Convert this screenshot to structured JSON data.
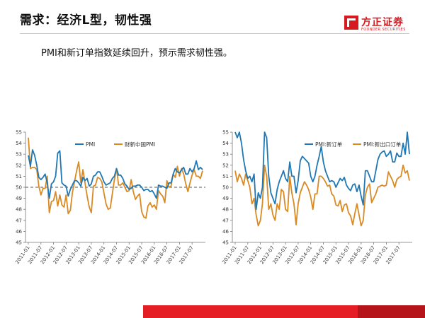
{
  "slide": {
    "title": "需求：经济L型，韧性强",
    "subtitle": "PMI和新订单指数延续回升，预示需求韧性强。",
    "logo_cn": "方正证券",
    "logo_en": "FOUNDER SECURITIES",
    "accent_color": "#d71920"
  },
  "chart_data": [
    {
      "type": "line",
      "x": [
        "2011-01",
        "2011-02",
        "2011-03",
        "2011-04",
        "2011-05",
        "2011-06",
        "2011-07",
        "2011-08",
        "2011-09",
        "2011-10",
        "2011-11",
        "2011-12",
        "2012-01",
        "2012-02",
        "2012-03",
        "2012-04",
        "2012-05",
        "2012-06",
        "2012-07",
        "2012-08",
        "2012-09",
        "2012-10",
        "2012-11",
        "2012-12",
        "2013-01",
        "2013-02",
        "2013-03",
        "2013-04",
        "2013-05",
        "2013-06",
        "2013-07",
        "2013-08",
        "2013-09",
        "2013-10",
        "2013-11",
        "2013-12",
        "2014-01",
        "2014-02",
        "2014-03",
        "2014-04",
        "2014-05",
        "2014-06",
        "2014-07",
        "2014-08",
        "2014-09",
        "2014-10",
        "2014-11",
        "2014-12",
        "2015-01",
        "2015-02",
        "2015-03",
        "2015-04",
        "2015-05",
        "2015-06",
        "2015-07",
        "2015-08",
        "2015-09",
        "2015-10",
        "2015-11",
        "2015-12",
        "2016-01",
        "2016-02",
        "2016-03",
        "2016-04",
        "2016-05",
        "2016-06",
        "2016-07",
        "2016-08",
        "2016-09",
        "2016-10",
        "2016-11",
        "2016-12",
        "2017-01",
        "2017-02",
        "2017-03",
        "2017-04",
        "2017-05",
        "2017-06",
        "2017-07",
        "2017-08",
        "2017-09",
        "2017-10",
        "2017-11",
        "2017-12"
      ],
      "tick_labels": [
        "2011-01",
        "2011-07",
        "2012-01",
        "2012-07",
        "2013-01",
        "2013-07",
        "2014-01",
        "2014-07",
        "2015-01",
        "2015-07",
        "2016-01",
        "2016-07",
        "2017-01",
        "2017-07"
      ],
      "ylim": [
        45,
        55
      ],
      "yticks": [
        45,
        46,
        47,
        48,
        49,
        50,
        51,
        52,
        53,
        54,
        55
      ],
      "reference_line": 50,
      "legend": "top-inside",
      "series": [
        {
          "name": "PMI",
          "color": "#1f78b4",
          "values": [
            52.9,
            51.9,
            53.4,
            52.9,
            52.0,
            50.9,
            50.7,
            50.9,
            51.2,
            50.4,
            49.0,
            50.3,
            50.5,
            51.0,
            53.1,
            53.3,
            50.4,
            50.2,
            50.1,
            49.2,
            49.8,
            50.2,
            50.6,
            50.6,
            50.4,
            50.1,
            50.9,
            50.6,
            50.8,
            50.1,
            50.3,
            51.0,
            51.1,
            51.4,
            51.4,
            51.0,
            50.5,
            50.2,
            50.3,
            50.4,
            50.8,
            51.0,
            51.7,
            51.1,
            51.1,
            50.8,
            50.3,
            50.1,
            49.8,
            49.9,
            50.1,
            50.1,
            50.2,
            50.2,
            50.0,
            49.7,
            49.8,
            49.8,
            49.6,
            49.7,
            49.4,
            49.0,
            50.2,
            50.1,
            50.1,
            50.0,
            49.9,
            50.4,
            50.4,
            51.2,
            51.7,
            51.4,
            51.3,
            51.6,
            51.8,
            51.2,
            51.2,
            51.7,
            51.4,
            51.7,
            52.4,
            51.6,
            51.8,
            51.6
          ]
        },
        {
          "name": "财新中国PMI",
          "color": "#d98a24",
          "values": [
            54.5,
            51.7,
            51.8,
            51.8,
            51.6,
            50.1,
            49.3,
            49.9,
            49.9,
            51.0,
            47.7,
            48.7,
            48.8,
            49.6,
            48.3,
            49.3,
            48.4,
            48.2,
            49.3,
            47.6,
            47.9,
            49.5,
            50.5,
            51.5,
            52.3,
            50.4,
            51.6,
            50.4,
            49.2,
            48.2,
            47.7,
            50.1,
            50.2,
            50.9,
            50.8,
            50.5,
            49.5,
            48.5,
            48.0,
            48.1,
            49.4,
            50.7,
            51.7,
            50.2,
            50.2,
            50.4,
            50.0,
            49.6,
            49.7,
            50.7,
            49.6,
            48.9,
            49.2,
            49.4,
            47.8,
            47.3,
            47.2,
            48.3,
            48.6,
            48.2,
            48.4,
            48.0,
            49.7,
            49.4,
            49.2,
            48.6,
            50.6,
            50.0,
            50.1,
            51.2,
            50.9,
            51.9,
            51.0,
            51.7,
            51.2,
            50.3,
            49.6,
            50.4,
            51.1,
            51.6,
            51.0,
            51.0,
            50.8,
            51.5
          ]
        }
      ]
    },
    {
      "type": "line",
      "x": [
        "2011-01",
        "2011-02",
        "2011-03",
        "2011-04",
        "2011-05",
        "2011-06",
        "2011-07",
        "2011-08",
        "2011-09",
        "2011-10",
        "2011-11",
        "2011-12",
        "2012-01",
        "2012-02",
        "2012-03",
        "2012-04",
        "2012-05",
        "2012-06",
        "2012-07",
        "2012-08",
        "2012-09",
        "2012-10",
        "2012-11",
        "2012-12",
        "2013-01",
        "2013-02",
        "2013-03",
        "2013-04",
        "2013-05",
        "2013-06",
        "2013-07",
        "2013-08",
        "2013-09",
        "2013-10",
        "2013-11",
        "2013-12",
        "2014-01",
        "2014-02",
        "2014-03",
        "2014-04",
        "2014-05",
        "2014-06",
        "2014-07",
        "2014-08",
        "2014-09",
        "2014-10",
        "2014-11",
        "2014-12",
        "2015-01",
        "2015-02",
        "2015-03",
        "2015-04",
        "2015-05",
        "2015-06",
        "2015-07",
        "2015-08",
        "2015-09",
        "2015-10",
        "2015-11",
        "2015-12",
        "2016-01",
        "2016-02",
        "2016-03",
        "2016-04",
        "2016-05",
        "2016-06",
        "2016-07",
        "2016-08",
        "2016-09",
        "2016-10",
        "2016-11",
        "2016-12",
        "2017-01",
        "2017-02",
        "2017-03",
        "2017-04",
        "2017-05",
        "2017-06",
        "2017-07",
        "2017-08",
        "2017-09",
        "2017-10",
        "2017-11",
        "2017-12"
      ],
      "tick_labels": [
        "2011-01",
        "2011-07",
        "2012-01",
        "2012-07",
        "2013-01",
        "2013-07",
        "2014-01",
        "2014-07",
        "2015-01",
        "2015-07",
        "2016-01",
        "2016-07",
        "2017-01",
        "2017-07"
      ],
      "ylim": [
        45,
        55
      ],
      "yticks": [
        45,
        46,
        47,
        48,
        49,
        50,
        51,
        52,
        53,
        54,
        55
      ],
      "legend": "top-inside",
      "series": [
        {
          "name": "PMI:新订单",
          "color": "#1f78b4",
          "values": [
            55.0,
            54.5,
            55.0,
            54.0,
            52.5,
            51.5,
            50.8,
            51.0,
            50.5,
            51.2,
            48.0,
            49.5,
            49.0,
            50.0,
            55.0,
            54.5,
            51.0,
            49.5,
            49.0,
            48.5,
            49.8,
            50.5,
            51.0,
            51.5,
            50.8,
            50.5,
            52.3,
            51.0,
            51.0,
            49.5,
            50.6,
            52.4,
            52.8,
            52.6,
            52.4,
            52.2,
            51.0,
            50.5,
            51.0,
            52.0,
            52.8,
            53.7,
            52.3,
            51.5,
            51.0,
            50.5,
            50.6,
            50.5,
            50.0,
            50.4,
            50.8,
            50.6,
            50.9,
            50.2,
            49.9,
            49.7,
            50.2,
            50.3,
            49.6,
            50.2,
            49.2,
            48.4,
            51.5,
            51.5,
            51.0,
            50.5,
            50.5,
            51.5,
            52.5,
            53.0,
            53.2,
            53.3,
            52.8,
            53.0,
            53.3,
            52.3,
            52.3,
            53.1,
            52.8,
            52.8,
            54.0,
            53.0,
            55.0,
            53.0
          ]
        },
        {
          "name": "PMI:新出口订单",
          "color": "#d98a24",
          "values": [
            51.5,
            50.5,
            51.2,
            50.8,
            50.2,
            51.2,
            50.6,
            50.0,
            48.5,
            49.0,
            47.5,
            46.5,
            47.0,
            48.5,
            52.0,
            51.0,
            48.0,
            48.5,
            47.5,
            47.0,
            48.5,
            48.0,
            49.8,
            49.6,
            48.0,
            47.8,
            51.0,
            49.5,
            48.5,
            46.6,
            48.5,
            49.5,
            50.0,
            50.5,
            50.2,
            49.8,
            49.1,
            48.0,
            49.4,
            49.4,
            51.0,
            51.0,
            50.8,
            50.5,
            50.1,
            50.2,
            49.4,
            49.2,
            48.4,
            48.3,
            48.8,
            47.8,
            48.4,
            48.5,
            47.7,
            47.4,
            46.6,
            47.6,
            48.5,
            47.5,
            46.5,
            47.0,
            49.3,
            50.0,
            50.3,
            48.6,
            49.0,
            49.4,
            50.0,
            50.1,
            50.2,
            50.1,
            50.2,
            51.4,
            51.0,
            50.6,
            50.0,
            50.7,
            50.9,
            51.0,
            52.0,
            51.3,
            51.5,
            50.6
          ]
        }
      ]
    }
  ]
}
